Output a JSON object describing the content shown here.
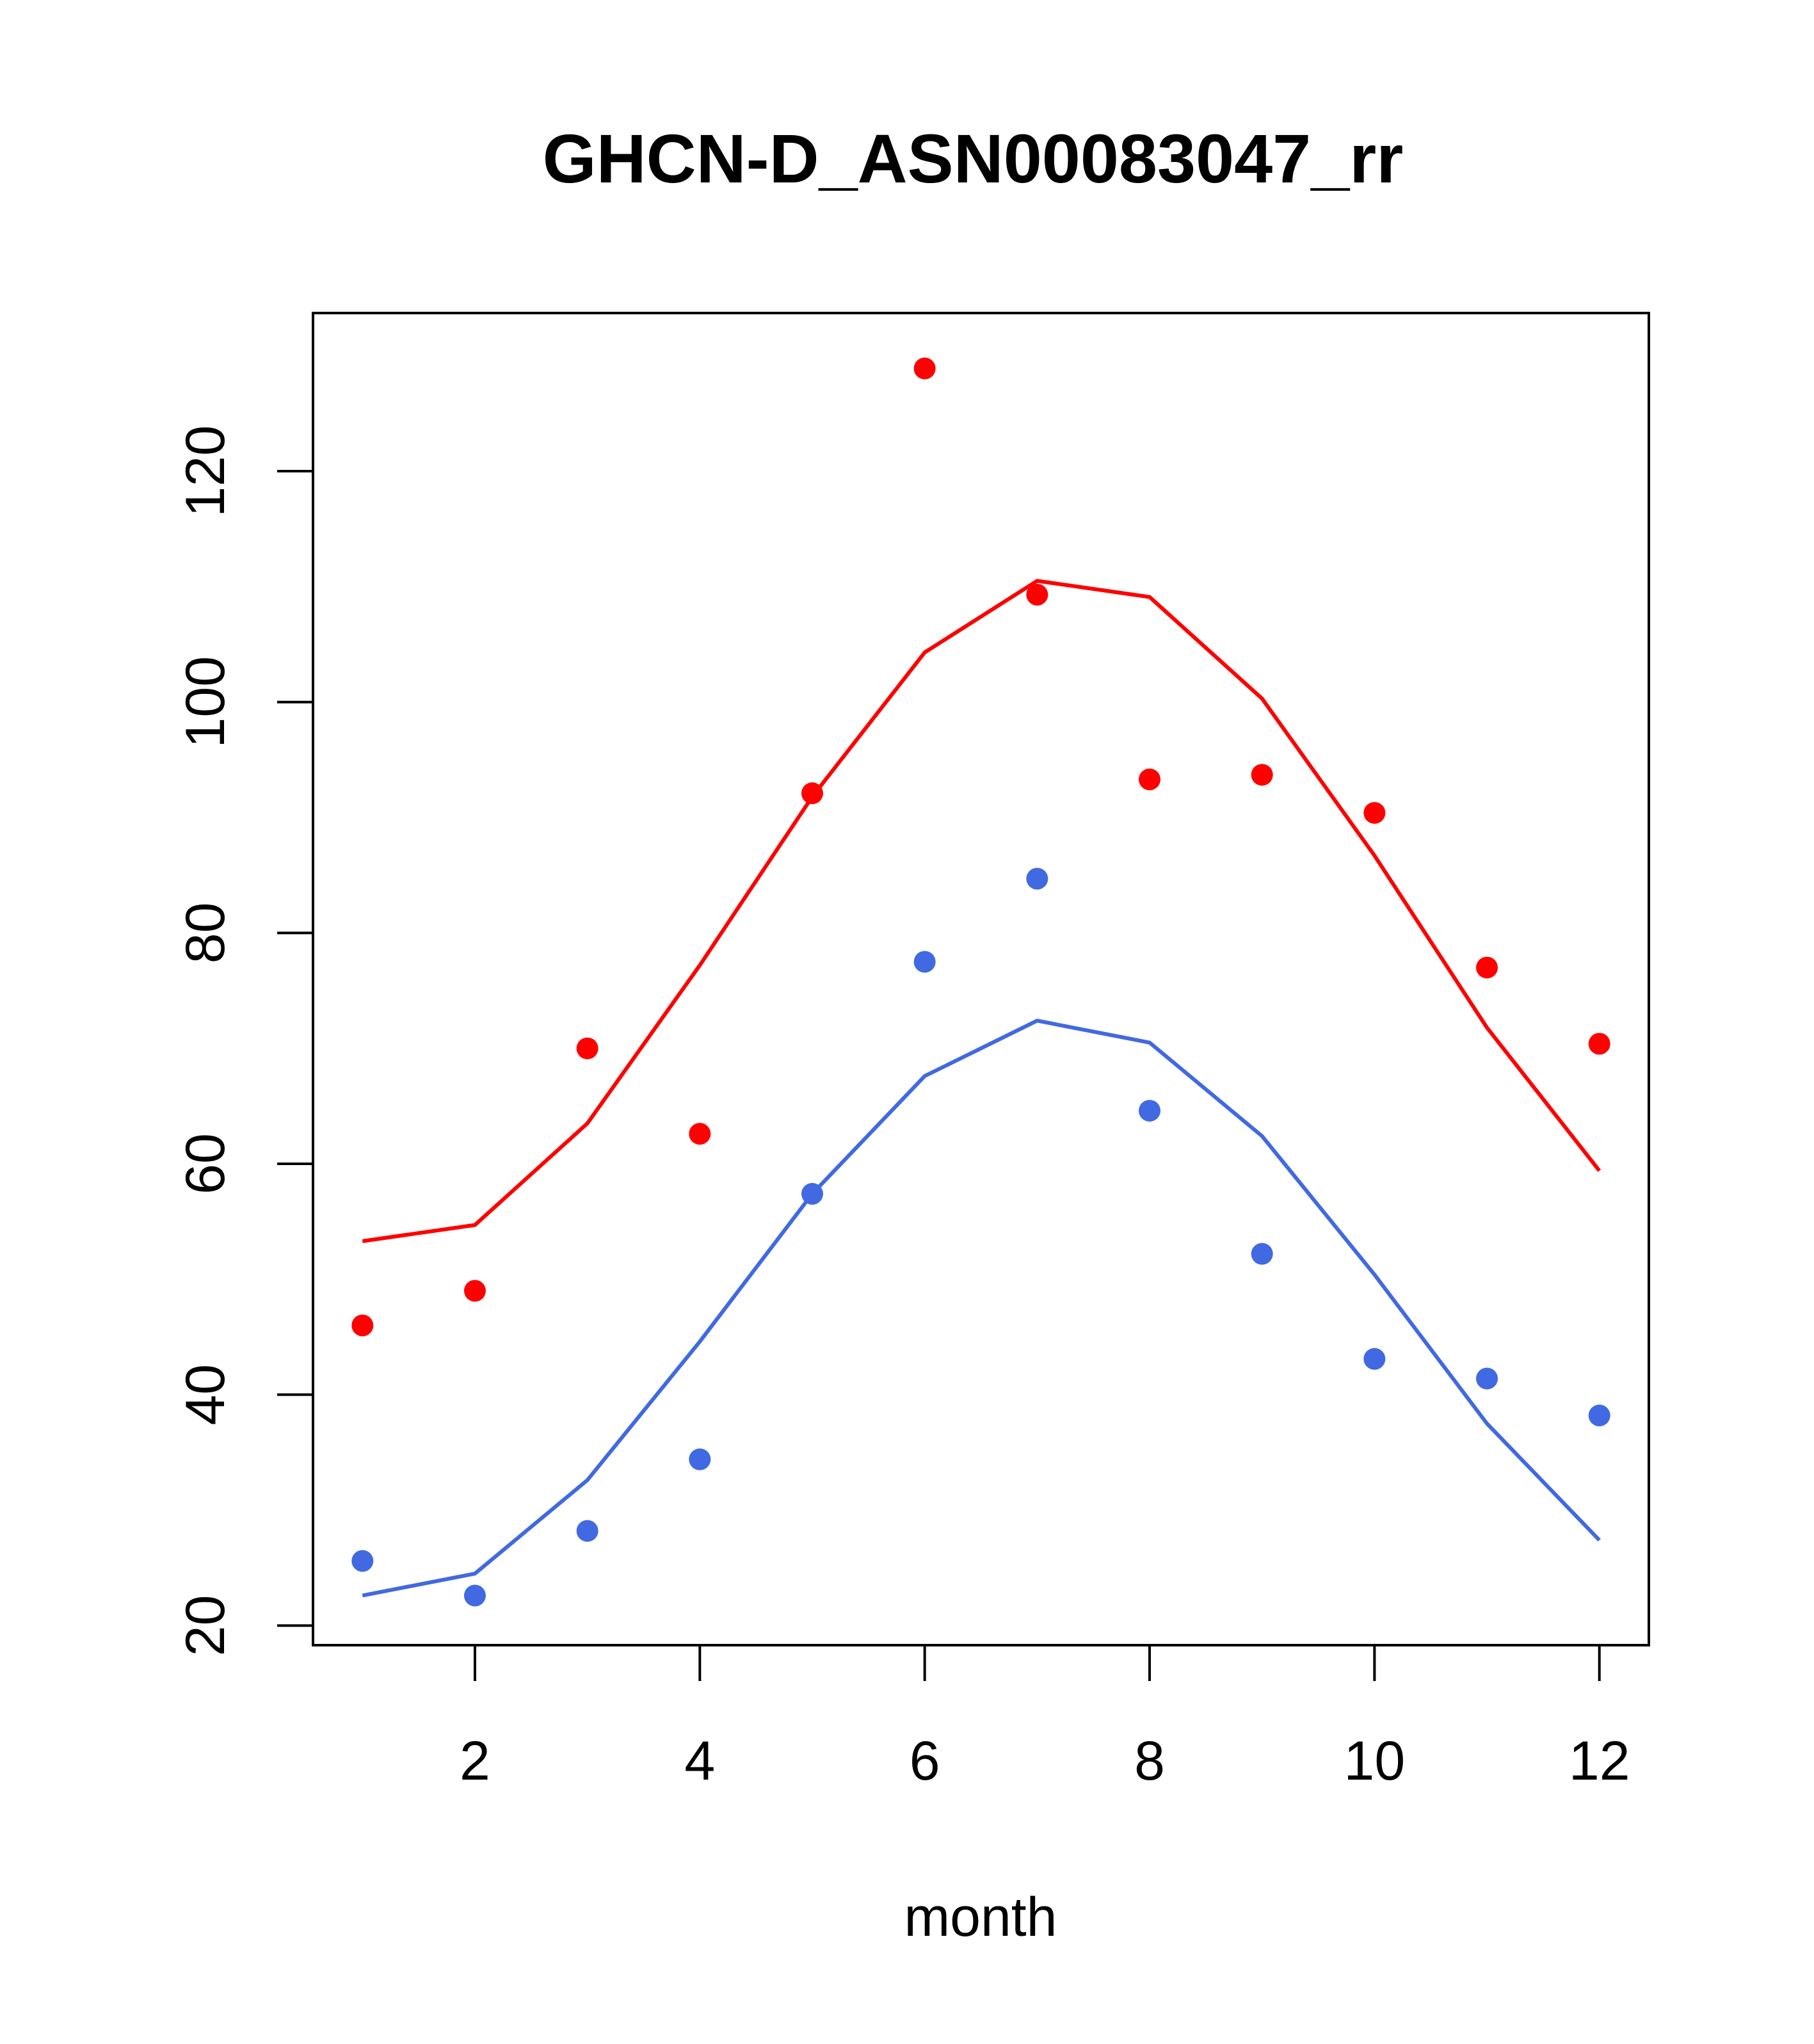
{
  "chart_data": {
    "type": "scatter",
    "title": "GHCN-D_ASN00083047_rr",
    "xlabel": "month",
    "ylabel": "",
    "xlim": [
      0.56,
      12.44
    ],
    "ylim": [
      18.3,
      133.7
    ],
    "x_ticks": [
      "2",
      "4",
      "6",
      "8",
      "10",
      "12"
    ],
    "y_ticks": [
      "20",
      "40",
      "60",
      "80",
      "100",
      "120"
    ],
    "x": [
      1,
      2,
      3,
      4,
      5,
      6,
      7,
      8,
      9,
      10,
      11,
      12
    ],
    "series": [
      {
        "color": "#ff0000",
        "points": [
          46.0,
          49.0,
          70.0,
          62.6,
          92.1,
          128.9,
          109.3,
          93.3,
          93.7,
          90.4,
          77.0,
          70.4
        ],
        "line": [
          53.3,
          54.7,
          63.5,
          77.2,
          91.8,
          104.3,
          110.5,
          109.1,
          100.3,
          86.7,
          71.8,
          59.4
        ]
      },
      {
        "color": "#4169e1",
        "points": [
          25.6,
          22.6,
          28.2,
          34.4,
          57.4,
          77.5,
          84.7,
          64.6,
          52.2,
          43.1,
          41.4,
          38.2
        ],
        "line": [
          22.6,
          24.5,
          32.6,
          44.6,
          57.4,
          67.6,
          72.4,
          70.5,
          62.4,
          50.4,
          37.5,
          27.4
        ]
      }
    ],
    "grid": false,
    "legend": "none"
  }
}
